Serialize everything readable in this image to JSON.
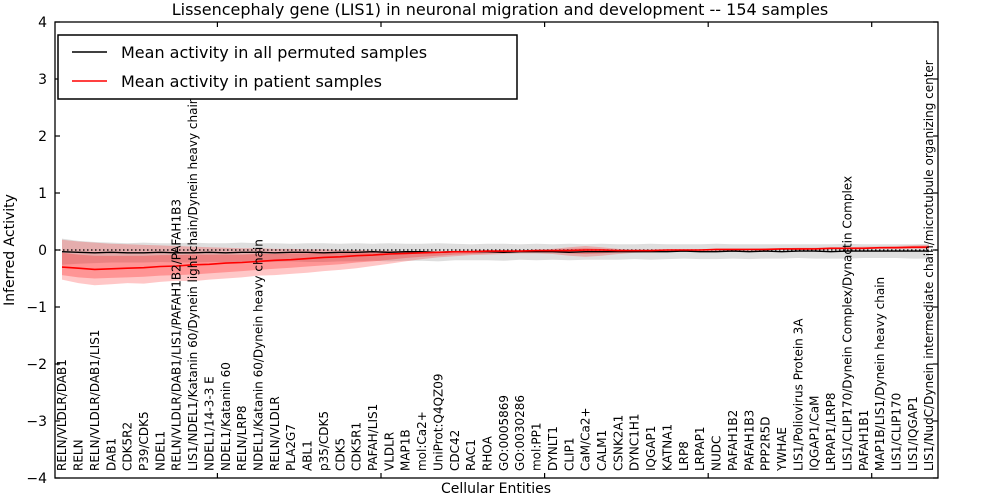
{
  "chart_data": {
    "type": "line",
    "title": "Lissencephaly gene (LIS1) in neuronal migration and development -- 154 samples",
    "xlabel": "Cellular Entities",
    "ylabel": "Inferred Activity",
    "ylim": [
      -4,
      4
    ],
    "yticks": [
      4,
      3,
      2,
      1,
      0,
      -1,
      -2,
      -3,
      -4
    ],
    "minor_xtick_indices": [
      9.5,
      19.5,
      29.5,
      39.5,
      49.5
    ],
    "grid": false,
    "legend_position": "upper-left",
    "reference_line": {
      "y": 0,
      "style": "dotted",
      "color": "#000000"
    },
    "colors": {
      "permuted": "#000000",
      "patient": "#ff0000",
      "band_gray": "#000000",
      "band_red": "#ff0000"
    },
    "categories": [
      "RELN/VLDLR/DAB1",
      "RELN",
      "RELN/VLDLR/DAB1/LIS1",
      "DAB1",
      "CDK5R2",
      "P39/CDK5",
      "NDEL1",
      "RELN/VLDLR/DAB1/LIS1/PAFAH1B2/PAFAH1B3",
      "LIS1/NDEL1/Katanin 60/Dynein light chain/Dynein heavy chain",
      "NDEL1/14-3-3 E",
      "NDEL1/Katanin 60",
      "RELN/LRP8",
      "NDEL1/Katanin 60/Dynein heavy chain",
      "RELN/VLDLR",
      "PLA2G7",
      "ABL1",
      "p35/CDK5",
      "CDK5",
      "CDK5R1",
      "PAFAH/LIS1",
      "VLDLR",
      "MAP1B",
      "mol:Ca2+",
      "UniProt:Q4QZ09",
      "CDC42",
      "RAC1",
      "RHOA",
      "GO:0005869",
      "GO:0030286",
      "mol:PP1",
      "DYNLT1",
      "CLIP1",
      "CaM/Ca2+",
      "CALM1",
      "CSNK2A1",
      "DYNC1H1",
      "IQGAP1",
      "KATNA1",
      "LRP8",
      "LRPAP1",
      "NUDC",
      "PAFAH1B2",
      "PAFAH1B3",
      "PPP2R5D",
      "YWHAE",
      "LIS1/Poliovirus Protein 3A",
      "IQGAP1/CaM",
      "LRPAP1/LRP8",
      "LIS1/CLIP170/Dynein Complex/Dynactin Complex",
      "PAFAH1B1",
      "MAP1B/LIS1/Dynein heavy chain",
      "LIS1/CLIP170",
      "LIS1/IQGAP1",
      "LIS1/NudC/Dynein intermediate chain/microtubule organizing center"
    ],
    "series": [
      {
        "name": "Mean activity in all permuted samples",
        "color": "#000000",
        "style": "solid",
        "values": [
          -0.03,
          -0.04,
          -0.05,
          -0.04,
          -0.05,
          -0.05,
          -0.04,
          -0.05,
          -0.05,
          -0.04,
          -0.05,
          -0.04,
          -0.04,
          -0.05,
          -0.04,
          -0.04,
          -0.05,
          -0.04,
          -0.04,
          -0.03,
          -0.04,
          -0.03,
          -0.03,
          -0.04,
          -0.03,
          -0.03,
          -0.03,
          -0.04,
          -0.03,
          -0.03,
          -0.03,
          -0.04,
          -0.03,
          -0.03,
          -0.03,
          -0.03,
          -0.03,
          -0.03,
          -0.02,
          -0.03,
          -0.03,
          -0.02,
          -0.03,
          -0.02,
          -0.03,
          -0.02,
          -0.02,
          -0.03,
          -0.02,
          -0.02,
          -0.02,
          -0.02,
          -0.02,
          -0.02
        ]
      },
      {
        "name": "Mean activity in patient samples",
        "color": "#ff0000",
        "style": "solid",
        "values": [
          -0.3,
          -0.32,
          -0.34,
          -0.33,
          -0.32,
          -0.31,
          -0.29,
          -0.28,
          -0.26,
          -0.25,
          -0.23,
          -0.22,
          -0.2,
          -0.18,
          -0.17,
          -0.15,
          -0.13,
          -0.12,
          -0.1,
          -0.09,
          -0.07,
          -0.06,
          -0.05,
          -0.04,
          -0.03,
          -0.03,
          -0.02,
          -0.02,
          -0.02,
          -0.01,
          -0.01,
          -0.01,
          0.0,
          0.0,
          -0.01,
          -0.01,
          -0.01,
          0.0,
          0.0,
          0.0,
          0.01,
          0.01,
          0.01,
          0.01,
          0.02,
          0.02,
          0.02,
          0.03,
          0.03,
          0.03,
          0.04,
          0.04,
          0.05,
          0.05
        ]
      }
    ],
    "bands": [
      {
        "name": "permuted-samples-band",
        "color": "#000000",
        "opacity": 0.13,
        "upper": [
          0.2,
          0.16,
          0.14,
          0.13,
          0.12,
          0.13,
          0.12,
          0.12,
          0.13,
          0.12,
          0.12,
          0.13,
          0.12,
          0.12,
          0.11,
          0.12,
          0.12,
          0.11,
          0.12,
          0.11,
          0.12,
          0.11,
          0.11,
          0.12,
          0.11,
          0.1,
          0.11,
          0.11,
          0.1,
          0.11,
          0.1,
          0.11,
          0.1,
          0.11,
          0.1,
          0.1,
          0.11,
          0.1,
          0.1,
          0.1,
          0.11,
          0.1,
          0.1,
          0.1,
          0.1,
          0.1,
          0.1,
          0.1,
          0.11,
          0.1,
          0.1,
          0.1,
          0.1,
          0.11
        ],
        "lower": [
          -0.26,
          -0.24,
          -0.23,
          -0.22,
          -0.22,
          -0.22,
          -0.21,
          -0.22,
          -0.22,
          -0.21,
          -0.21,
          -0.22,
          -0.21,
          -0.21,
          -0.2,
          -0.21,
          -0.21,
          -0.2,
          -0.2,
          -0.19,
          -0.2,
          -0.19,
          -0.19,
          -0.2,
          -0.18,
          -0.18,
          -0.18,
          -0.19,
          -0.17,
          -0.18,
          -0.17,
          -0.18,
          -0.17,
          -0.17,
          -0.17,
          -0.16,
          -0.17,
          -0.16,
          -0.15,
          -0.16,
          -0.16,
          -0.15,
          -0.16,
          -0.15,
          -0.15,
          -0.14,
          -0.15,
          -0.15,
          -0.15,
          -0.14,
          -0.14,
          -0.14,
          -0.15,
          -0.15
        ]
      },
      {
        "name": "patient-samples-band-outer",
        "color": "#ff0000",
        "opacity": 0.22,
        "upper": [
          0.18,
          0.15,
          0.13,
          0.11,
          0.1,
          0.09,
          0.08,
          0.07,
          0.06,
          0.05,
          0.04,
          0.03,
          0.03,
          0.02,
          0.02,
          0.01,
          0.01,
          0.0,
          0.0,
          -0.01,
          -0.01,
          -0.02,
          -0.02,
          -0.02,
          -0.02,
          -0.01,
          -0.01,
          -0.01,
          -0.01,
          0.0,
          0.02,
          0.05,
          0.07,
          0.05,
          0.02,
          0.0,
          0.0,
          0.01,
          0.01,
          0.01,
          0.02,
          0.02,
          0.02,
          0.03,
          0.03,
          0.04,
          0.04,
          0.05,
          0.05,
          0.06,
          0.06,
          0.07,
          0.08,
          0.09
        ],
        "lower": [
          -0.52,
          -0.58,
          -0.62,
          -0.6,
          -0.58,
          -0.59,
          -0.56,
          -0.54,
          -0.55,
          -0.52,
          -0.5,
          -0.48,
          -0.45,
          -0.44,
          -0.42,
          -0.4,
          -0.37,
          -0.35,
          -0.32,
          -0.28,
          -0.24,
          -0.2,
          -0.16,
          -0.13,
          -0.11,
          -0.09,
          -0.08,
          -0.07,
          -0.06,
          -0.06,
          -0.07,
          -0.1,
          -0.12,
          -0.1,
          -0.07,
          -0.05,
          -0.04,
          -0.03,
          -0.02,
          -0.02,
          -0.01,
          -0.01,
          -0.01,
          0.0,
          0.0,
          0.0,
          0.01,
          0.01,
          0.01,
          0.01,
          0.02,
          0.02,
          0.02,
          0.02
        ]
      },
      {
        "name": "patient-samples-band-inner",
        "color": "#ff0000",
        "opacity": 0.25,
        "upper": [
          -0.05,
          -0.08,
          -0.1,
          -0.1,
          -0.1,
          -0.1,
          -0.09,
          -0.09,
          -0.08,
          -0.08,
          -0.08,
          -0.08,
          -0.07,
          -0.07,
          -0.06,
          -0.06,
          -0.05,
          -0.05,
          -0.04,
          -0.04,
          -0.04,
          -0.03,
          -0.03,
          -0.03,
          -0.02,
          -0.02,
          -0.02,
          -0.01,
          -0.01,
          -0.01,
          0.0,
          0.02,
          0.03,
          0.02,
          0.0,
          -0.01,
          -0.01,
          0.0,
          0.0,
          0.01,
          0.01,
          0.01,
          0.02,
          0.02,
          0.02,
          0.03,
          0.03,
          0.03,
          0.04,
          0.04,
          0.04,
          0.05,
          0.06,
          0.07
        ],
        "lower": [
          -0.44,
          -0.48,
          -0.5,
          -0.49,
          -0.48,
          -0.47,
          -0.45,
          -0.44,
          -0.43,
          -0.41,
          -0.39,
          -0.37,
          -0.35,
          -0.33,
          -0.31,
          -0.29,
          -0.27,
          -0.25,
          -0.22,
          -0.2,
          -0.17,
          -0.14,
          -0.12,
          -0.1,
          -0.08,
          -0.07,
          -0.06,
          -0.05,
          -0.04,
          -0.04,
          -0.04,
          -0.06,
          -0.07,
          -0.06,
          -0.04,
          -0.03,
          -0.03,
          -0.02,
          -0.02,
          -0.01,
          -0.01,
          0.0,
          0.0,
          0.0,
          0.01,
          0.01,
          0.01,
          0.02,
          0.02,
          0.02,
          0.03,
          0.03,
          0.03,
          0.04
        ]
      }
    ]
  }
}
